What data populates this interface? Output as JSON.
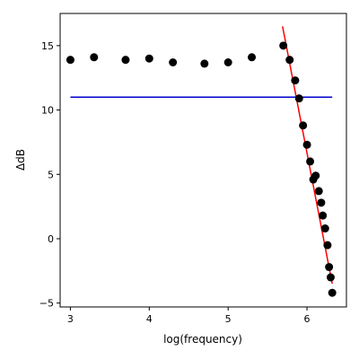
{
  "chart_data": {
    "type": "scatter",
    "title": "",
    "xlabel": "log(frequency)",
    "ylabel": "ΔdB",
    "xlim": [
      2.87,
      6.5
    ],
    "ylim": [
      -5.3,
      17.5
    ],
    "xticks": [
      3,
      4,
      5,
      6
    ],
    "yticks": [
      -5,
      0,
      5,
      10,
      15
    ],
    "xtick_labels": [
      "3",
      "4",
      "5",
      "6"
    ],
    "ytick_labels": [
      "−5",
      "0",
      "5",
      "10",
      "15"
    ],
    "grid": false,
    "legend": "none",
    "points": {
      "color": "#000000",
      "x": [
        3.0,
        3.3,
        3.7,
        4.0,
        4.3,
        4.7,
        5.0,
        5.3,
        5.7,
        5.78,
        5.85,
        5.9,
        5.95,
        6.0,
        6.04,
        6.08,
        6.11,
        6.15,
        6.18,
        6.2,
        6.23,
        6.26,
        6.28,
        6.3,
        6.32
      ],
      "y": [
        13.9,
        14.1,
        13.9,
        14.0,
        13.7,
        13.6,
        13.7,
        14.1,
        15.0,
        13.9,
        12.3,
        10.9,
        8.8,
        7.3,
        6.0,
        4.6,
        4.9,
        3.7,
        2.8,
        1.8,
        0.8,
        -0.5,
        -2.2,
        -3.0,
        -4.2
      ]
    },
    "lines": [
      {
        "color": "#0000cc",
        "x": [
          3.0,
          6.32
        ],
        "y": [
          11.0,
          11.0
        ]
      },
      {
        "color": "#ff0000",
        "x": [
          5.69,
          6.32
        ],
        "y": [
          16.5,
          -3.5
        ]
      }
    ]
  }
}
